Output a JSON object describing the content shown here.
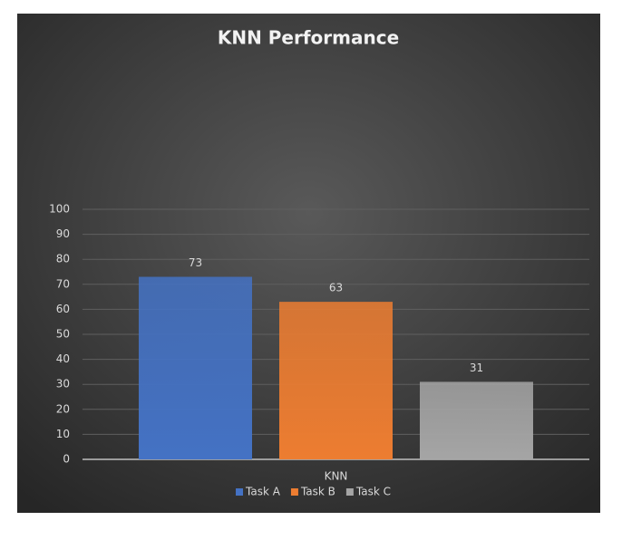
{
  "chart_data": {
    "type": "bar",
    "title": "KNN Performance",
    "categories": [
      "KNN"
    ],
    "series": [
      {
        "name": "Task A",
        "color": "#4472c4",
        "values": [
          73
        ]
      },
      {
        "name": "Task B",
        "color": "#ed7d31",
        "values": [
          63
        ]
      },
      {
        "name": "Task C",
        "color": "#a5a5a5",
        "values": [
          31
        ]
      }
    ],
    "ylim": [
      0,
      100
    ],
    "yticks": [
      0,
      10,
      20,
      30,
      40,
      50,
      60,
      70,
      80,
      90,
      100
    ],
    "grid": true,
    "legend": "bottom"
  }
}
